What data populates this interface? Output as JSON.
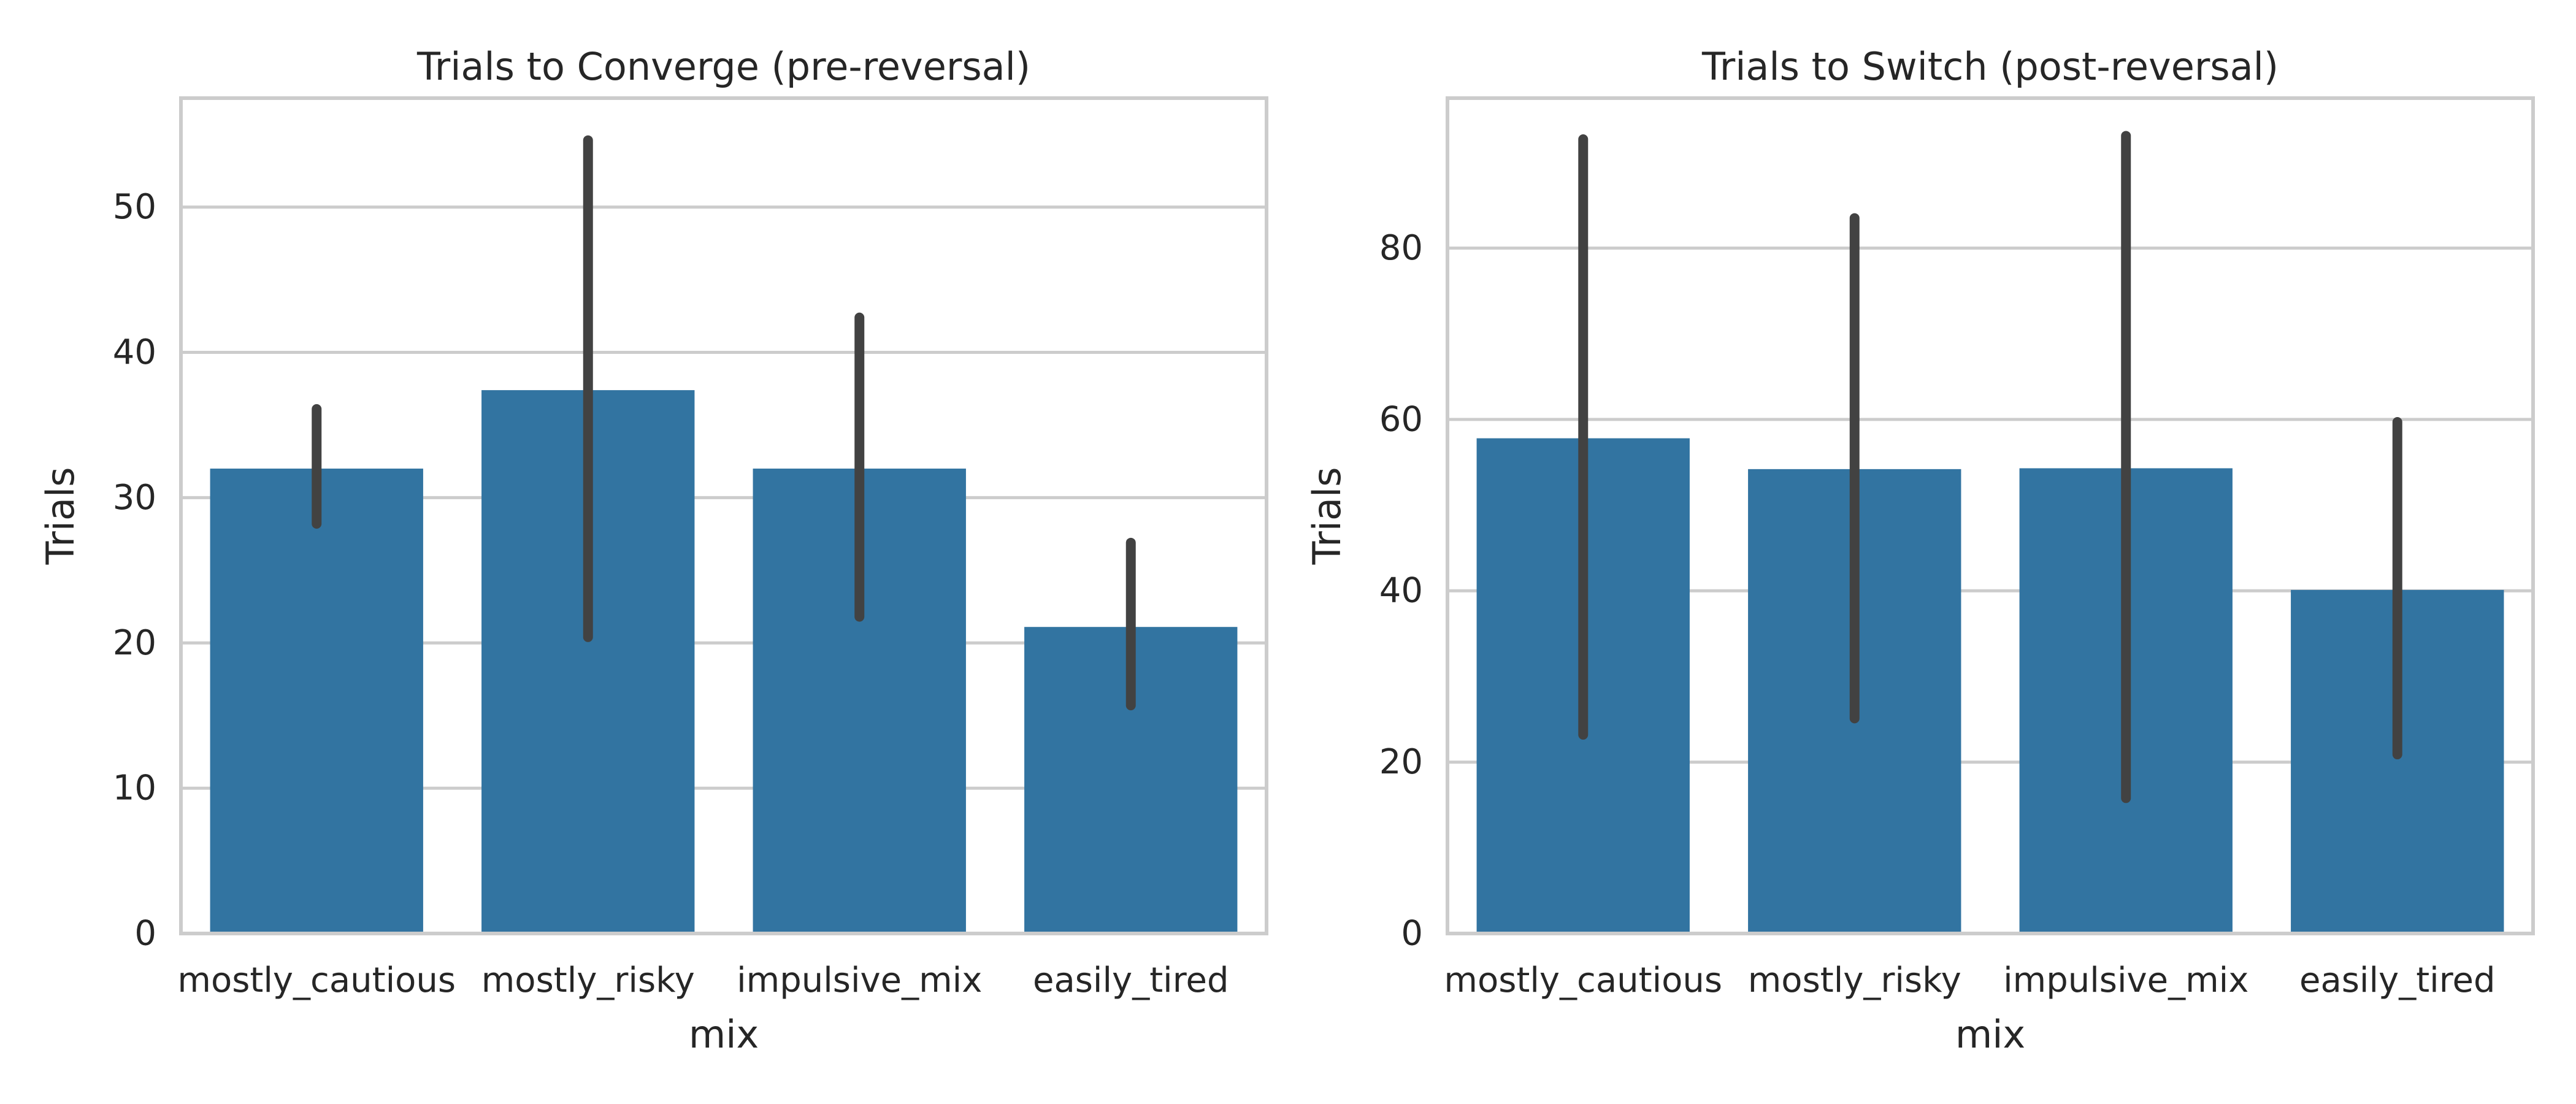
{
  "chart_data": [
    {
      "type": "bar",
      "title": "Trials to Converge (pre-reversal)",
      "xlabel": "mix",
      "ylabel": "Trials",
      "categories": [
        "mostly_cautious",
        "mostly_risky",
        "impulsive_mix",
        "easily_tired"
      ],
      "values": [
        32.0,
        37.4,
        32.0,
        21.1
      ],
      "error_low": [
        28.2,
        20.4,
        21.8,
        15.7
      ],
      "error_high": [
        36.1,
        54.6,
        42.4,
        26.9
      ],
      "ylim": [
        0,
        57.5
      ],
      "yticks": [
        0,
        10,
        20,
        30,
        40,
        50
      ],
      "grid": "horizontal",
      "bar_color": "#3274a1",
      "errorbar_color": "#424242"
    },
    {
      "type": "bar",
      "title": "Trials to Switch (post-reversal)",
      "xlabel": "mix",
      "ylabel": "Trials",
      "categories": [
        "mostly_cautious",
        "mostly_risky",
        "impulsive_mix",
        "easily_tired"
      ],
      "values": [
        57.8,
        54.2,
        54.3,
        40.1
      ],
      "error_low": [
        23.2,
        25.1,
        15.8,
        20.9
      ],
      "error_high": [
        92.7,
        83.5,
        93.1,
        59.7
      ],
      "ylim": [
        0,
        97.5
      ],
      "yticks": [
        0,
        20,
        40,
        60,
        80
      ],
      "grid": "horizontal",
      "bar_color": "#3274a1",
      "errorbar_color": "#424242"
    }
  ]
}
